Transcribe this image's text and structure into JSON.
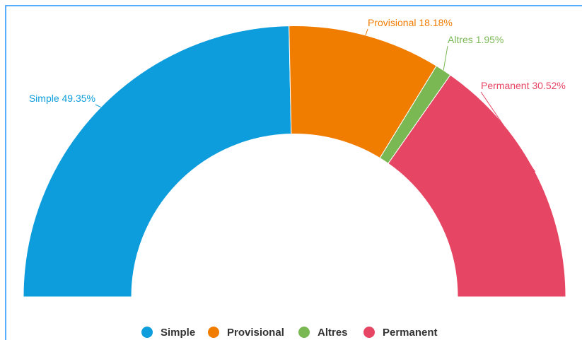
{
  "chart_data": {
    "type": "semi-donut",
    "categories": [
      "Simple",
      "Provisional",
      "Altres",
      "Permanent"
    ],
    "values": [
      49.35,
      18.18,
      1.95,
      30.52
    ],
    "value_labels": [
      "49.35%",
      "18.18%",
      "1.95%",
      "30.52%"
    ],
    "colors": [
      "#0e9ddc",
      "#f07c00",
      "#7ab853",
      "#e64664"
    ],
    "legend": "bottom"
  }
}
